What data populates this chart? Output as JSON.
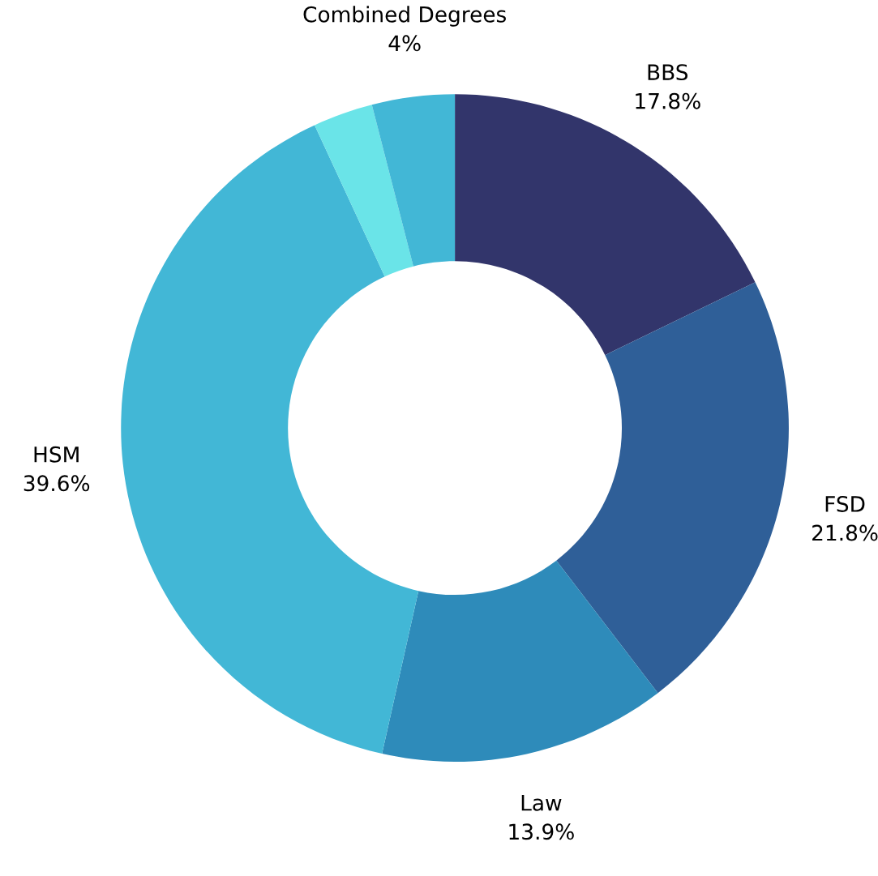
{
  "chart_data": {
    "type": "donut",
    "categories": [
      "BBS",
      "FSD",
      "Law",
      "HSM",
      null,
      "Combined Degrees"
    ],
    "values": [
      17.8,
      21.8,
      13.9,
      39.6,
      2.9,
      4
    ],
    "value_labels": [
      "17.8%",
      "21.8%",
      "13.9%",
      "39.6%",
      null,
      "4%"
    ],
    "colors": [
      "#32356b",
      "#2f5f98",
      "#2e8bba",
      "#42b7d6",
      "#6ae4e8",
      "#42b7d6"
    ]
  }
}
